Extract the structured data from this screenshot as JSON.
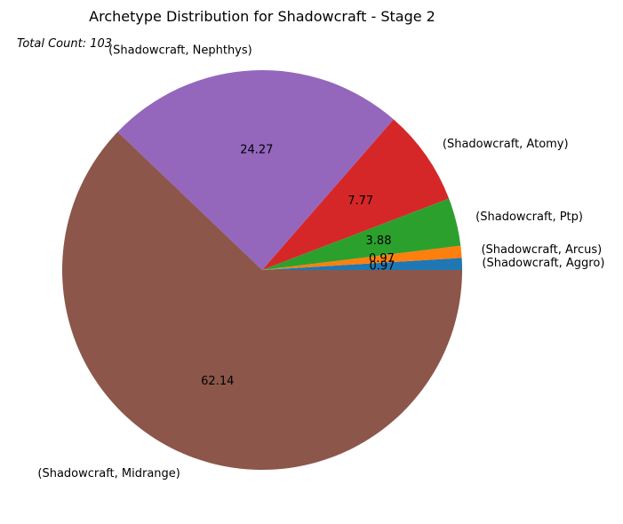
{
  "chart_data": {
    "type": "pie",
    "title": "Archetype Distribution for Shadowcraft - Stage 2",
    "annotation": "Total Count: 103",
    "start_angle_deg": 0,
    "direction": "counterclockwise",
    "slices": [
      {
        "label": "(Shadowcraft, Aggro)",
        "value": 0.97,
        "display": "0.97",
        "color": "#1f77b4"
      },
      {
        "label": "(Shadowcraft, Arcus)",
        "value": 0.97,
        "display": "0.97",
        "color": "#ff7f0e"
      },
      {
        "label": "(Shadowcraft, Ptp)",
        "value": 3.88,
        "display": "3.88",
        "color": "#2ca02c"
      },
      {
        "label": "(Shadowcraft, Atomy)",
        "value": 7.77,
        "display": "7.77",
        "color": "#d62728"
      },
      {
        "label": "(Shadowcraft, Nephthys)",
        "value": 24.27,
        "display": "24.27",
        "color": "#9467bd"
      },
      {
        "label": "(Shadowcraft, Midrange)",
        "value": 62.14,
        "display": "62.14",
        "color": "#8c564b"
      }
    ]
  }
}
